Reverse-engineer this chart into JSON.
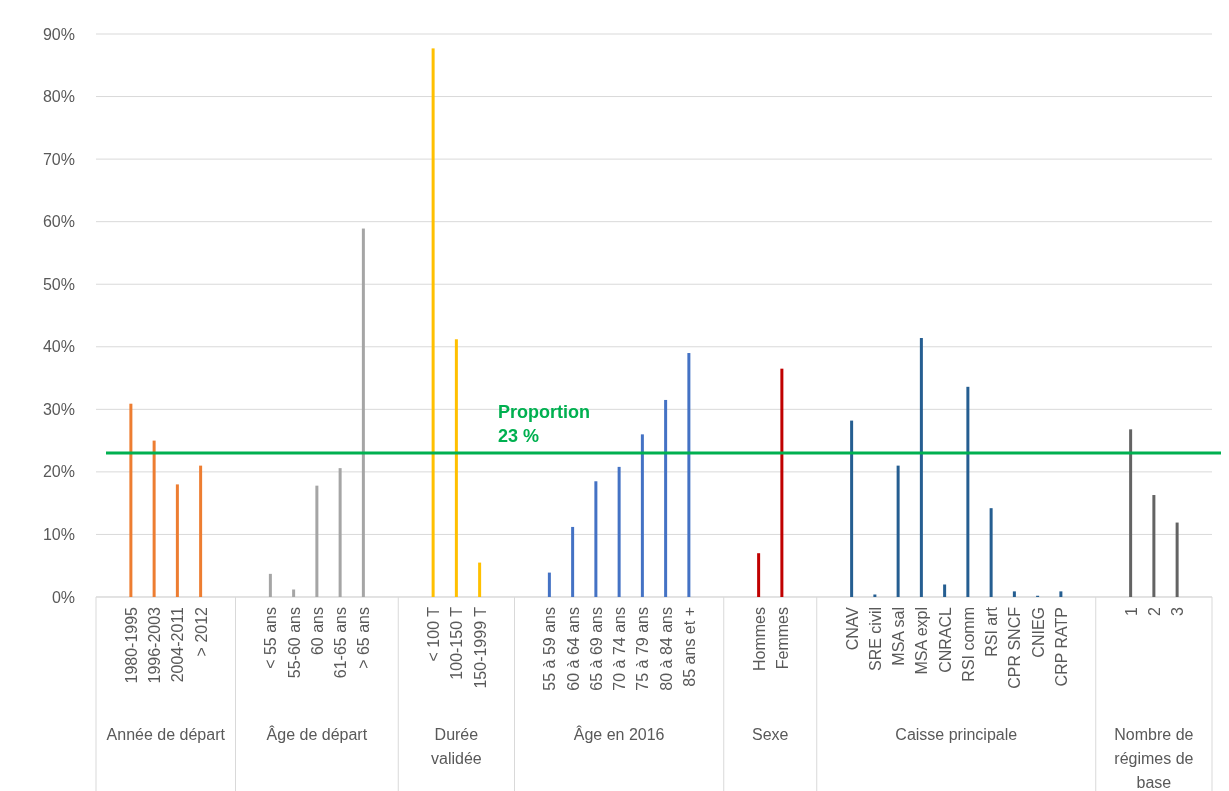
{
  "chart_data": {
    "type": "bar",
    "categories": [
      null,
      "1980-1995",
      "1996-2003",
      "2004-2011",
      "> 2012",
      null,
      null,
      "< 55 ans",
      "55-60 ans",
      "60 ans",
      "61-65 ans",
      "> 65 ans",
      null,
      null,
      "< 100 T",
      "100-150 T",
      "150-1999 T",
      null,
      null,
      "55 à 59 ans",
      "60 à 64 ans",
      "65 à 69 ans",
      "70 à 74 ans",
      "75 à 79 ans",
      "80 à 84 ans",
      "85 ans et +",
      null,
      null,
      "Hommes",
      "Femmes",
      null,
      null,
      "CNAV",
      "SRE civil",
      "MSA sal",
      "MSA expl",
      "CNRACL",
      "RSI comm",
      "RSI art",
      "CPR SNCF",
      "CNIEG",
      "CRP RATP",
      null,
      null,
      "1",
      "2",
      "3",
      null
    ],
    "values": [
      null,
      30.9,
      25,
      18,
      21,
      null,
      null,
      3.7,
      1.2,
      17.8,
      20.6,
      58.9,
      null,
      null,
      87.7,
      41.2,
      5.5,
      null,
      null,
      3.9,
      11.2,
      18.5,
      20.8,
      26,
      31.5,
      39,
      null,
      null,
      7,
      36.5,
      null,
      null,
      28.2,
      0.4,
      21,
      41.4,
      2,
      33.6,
      14.2,
      0.9,
      0.2,
      0.9,
      null,
      null,
      26.8,
      16.3,
      11.9,
      null
    ],
    "colors": [
      null,
      "#ed7d31",
      "#ed7d31",
      "#ed7d31",
      "#ed7d31",
      null,
      null,
      "#a5a5a5",
      "#a5a5a5",
      "#a5a5a5",
      "#a5a5a5",
      "#a5a5a5",
      null,
      null,
      "#ffc000",
      "#ffc000",
      "#ffc000",
      null,
      null,
      "#4472c4",
      "#4472c4",
      "#4472c4",
      "#4472c4",
      "#4472c4",
      "#4472c4",
      "#4472c4",
      null,
      null,
      "#c00000",
      "#c00000",
      null,
      null,
      "#255e91",
      "#255e91",
      "#255e91",
      "#255e91",
      "#255e91",
      "#255e91",
      "#255e91",
      "#255e91",
      "#255e91",
      "#255e91",
      null,
      null,
      "#636363",
      "#636363",
      "#636363",
      null
    ],
    "annotations": [
      "Année de départ",
      "Âge de départ",
      "Durée validée",
      "Âge en 2016",
      "Sexe",
      "Caisse principale",
      "Nombre de régimes de base"
    ],
    "ylim": [
      0,
      90
    ],
    "yticks": [
      {
        "value": 0,
        "label": "0%"
      },
      {
        "value": 10,
        "label": "10%"
      },
      {
        "value": 20,
        "label": "20%"
      },
      {
        "value": 30,
        "label": "30%"
      },
      {
        "value": 40,
        "label": "40%"
      },
      {
        "value": 50,
        "label": "50%"
      },
      {
        "value": 60,
        "label": "60%"
      },
      {
        "value": 70,
        "label": "70%"
      },
      {
        "value": 80,
        "label": "80%"
      },
      {
        "value": 90,
        "label": "90%"
      }
    ],
    "grid": "y",
    "ref_lines": [
      {
        "axis": "y",
        "value": 23,
        "label": "Proportion 23 %",
        "color": "#00b050"
      }
    ]
  }
}
